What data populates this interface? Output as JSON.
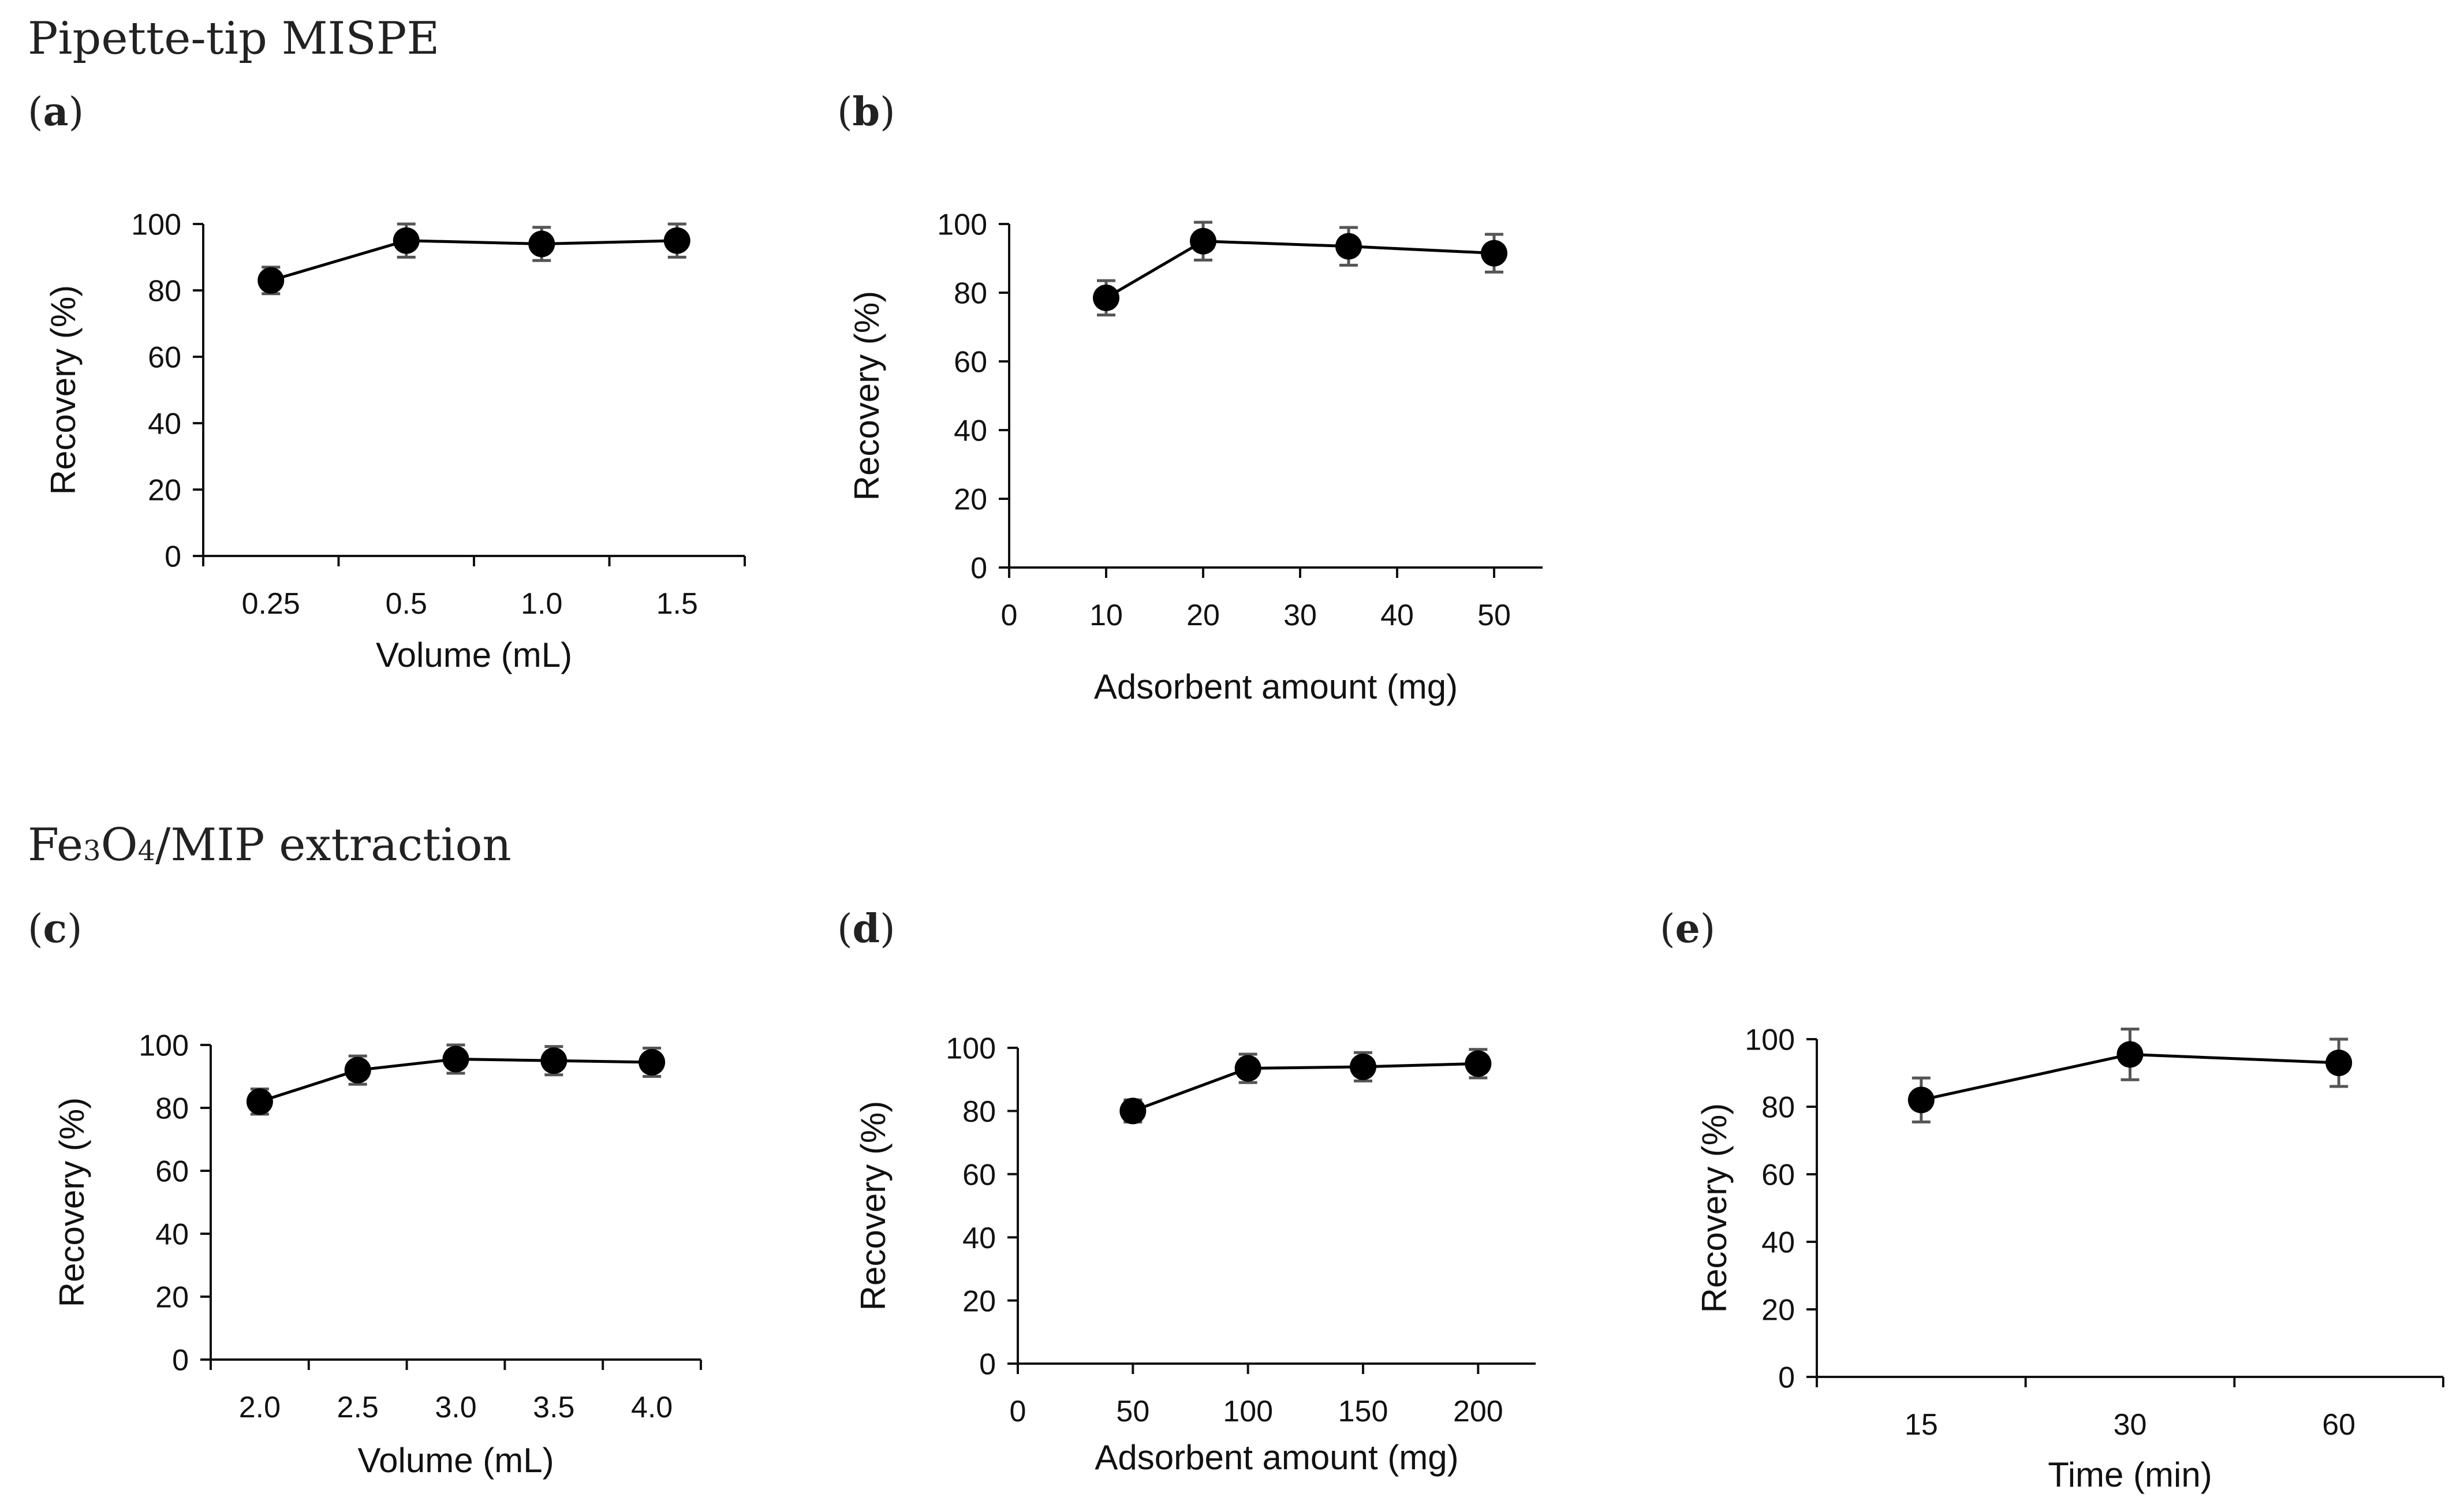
{
  "sections": [
    {
      "title": "Pipette-tip MISPE"
    },
    {
      "title_prefix": "Fe",
      "title_sub1": "3",
      "title_mid": "O",
      "title_sub2": "4",
      "title_suffix": "/MIP extraction"
    }
  ],
  "colors": {
    "axis": "#111111",
    "marker": "#000000",
    "error_bar": "#555555",
    "text": "#222222"
  },
  "chart_data": [
    {
      "id": "a",
      "panel_label": "a",
      "type": "line",
      "xlabel": "Volume (mL)",
      "ylabel": "Recovery (%)",
      "x_axis": "category",
      "categories": [
        "0.25",
        "0.5",
        "1.0",
        "1.5"
      ],
      "values": [
        83,
        95,
        94,
        95
      ],
      "errors": [
        4,
        5,
        5,
        5
      ],
      "ylim": [
        0,
        100
      ],
      "yticks": [
        0,
        20,
        40,
        60,
        80,
        100
      ]
    },
    {
      "id": "b",
      "panel_label": "b",
      "type": "line",
      "xlabel": "Adsorbent amount (mg)",
      "ylabel": "Recovery (%)",
      "x_axis": "numeric",
      "x": [
        10,
        20,
        35,
        50
      ],
      "values": [
        78.5,
        95,
        93.5,
        91.5
      ],
      "errors": [
        5,
        5.5,
        5.5,
        5.5
      ],
      "xlim": [
        0,
        55
      ],
      "xticks": [
        0,
        10,
        20,
        30,
        40,
        50
      ],
      "ylim": [
        0,
        100
      ],
      "yticks": [
        0,
        20,
        40,
        60,
        80,
        100
      ]
    },
    {
      "id": "c",
      "panel_label": "c",
      "type": "line",
      "xlabel": "Volume (mL)",
      "ylabel": "Recovery (%)",
      "x_axis": "category",
      "categories": [
        "2.0",
        "2.5",
        "3.0",
        "3.5",
        "4.0"
      ],
      "values": [
        82,
        92,
        95.5,
        95,
        94.5
      ],
      "errors": [
        4,
        4.5,
        4.5,
        4.5,
        4.5
      ],
      "ylim": [
        0,
        100
      ],
      "yticks": [
        0,
        20,
        40,
        60,
        80,
        100
      ]
    },
    {
      "id": "d",
      "panel_label": "d",
      "type": "line",
      "xlabel": "Adsorbent amount (mg)",
      "ylabel": "Recovery (%)",
      "x_axis": "numeric",
      "x": [
        50,
        100,
        150,
        200
      ],
      "values": [
        80,
        93.5,
        94,
        95
      ],
      "errors": [
        3.5,
        4.5,
        4.5,
        4.5
      ],
      "xlim": [
        0,
        225
      ],
      "xticks": [
        0,
        50,
        100,
        150,
        200
      ],
      "ylim": [
        0,
        100
      ],
      "yticks": [
        0,
        20,
        40,
        60,
        80,
        100
      ]
    },
    {
      "id": "e",
      "panel_label": "e",
      "type": "line",
      "xlabel": "Time (min)",
      "ylabel": "Recovery (%)",
      "x_axis": "category",
      "categories": [
        "15",
        "30",
        "60"
      ],
      "values": [
        82,
        95.5,
        93
      ],
      "errors": [
        6.5,
        7.5,
        7
      ],
      "ylim": [
        0,
        100
      ],
      "yticks": [
        0,
        20,
        40,
        60,
        80,
        100
      ]
    }
  ]
}
